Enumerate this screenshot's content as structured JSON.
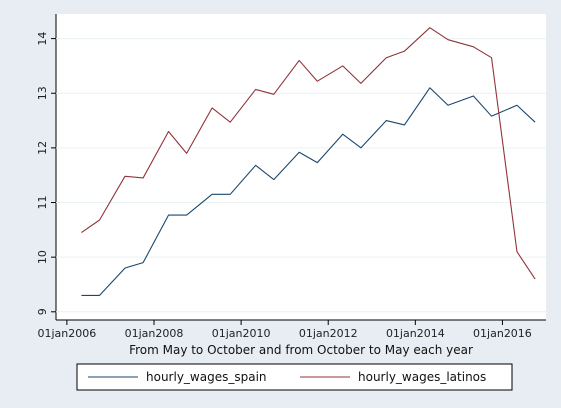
{
  "chart_data": {
    "type": "line",
    "title": "",
    "xlabel": "From May to October and from October to May each year",
    "ylabel": "",
    "x_ticks": [
      "01jan2006",
      "01jan2008",
      "01jan2010",
      "01jan2012",
      "01jan2014",
      "01jan2016"
    ],
    "y_ticks": [
      "9",
      "10",
      "11",
      "12",
      "13",
      "14"
    ],
    "xlim": [
      "2005-10",
      "2017-01"
    ],
    "ylim": [
      8.85,
      14.45
    ],
    "grid": "horizontal",
    "legend_position": "bottom",
    "x": [
      "2006-05",
      "2006-10",
      "2007-05",
      "2007-10",
      "2008-05",
      "2008-10",
      "2009-05",
      "2009-10",
      "2010-05",
      "2010-10",
      "2011-05",
      "2011-10",
      "2012-05",
      "2012-10",
      "2013-05",
      "2013-10",
      "2014-05",
      "2014-10",
      "2015-05",
      "2015-10",
      "2016-05",
      "2016-10"
    ],
    "series": [
      {
        "name": "hourly_wages_spain",
        "color": "#1a476f",
        "values": [
          9.3,
          9.3,
          9.8,
          9.9,
          10.77,
          10.77,
          11.15,
          11.15,
          11.68,
          11.42,
          11.92,
          11.73,
          12.25,
          12.0,
          12.5,
          12.42,
          13.1,
          12.78,
          12.95,
          12.58,
          12.78,
          12.47
        ]
      },
      {
        "name": "hourly_wages_latinos",
        "color": "#90353b",
        "values": [
          10.45,
          10.68,
          11.48,
          11.45,
          12.3,
          11.9,
          12.73,
          12.47,
          13.07,
          12.98,
          13.6,
          13.22,
          13.5,
          13.18,
          13.65,
          13.77,
          14.2,
          13.98,
          13.85,
          13.65,
          10.1,
          9.6
        ]
      }
    ]
  }
}
